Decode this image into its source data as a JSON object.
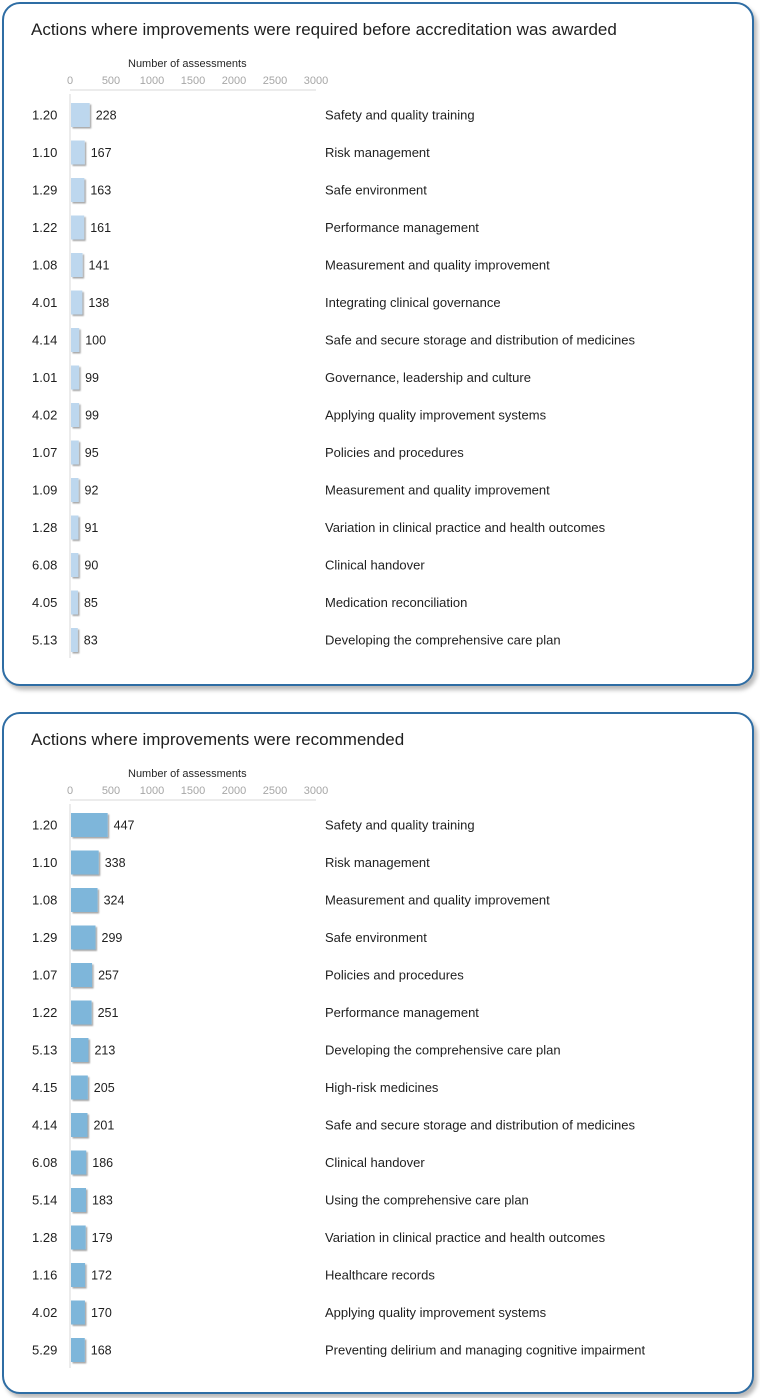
{
  "chart_data": [
    {
      "type": "bar",
      "orientation": "horizontal",
      "title": "Actions where improvements were required before accreditation was awarded",
      "xlabel": "Number  of assessments",
      "xlim": [
        0,
        3000
      ],
      "xticks": [
        "0",
        "500",
        "1000",
        "1500",
        "2000",
        "2500",
        "3000"
      ],
      "bar_color": "#bdd7ee",
      "categories": [
        "1.20",
        "1.10",
        "1.29",
        "1.22",
        "1.08",
        "4.01",
        "4.14",
        "1.01",
        "4.02",
        "1.07",
        "1.09",
        "1.28",
        "6.08",
        "4.05",
        "5.13"
      ],
      "values": [
        228,
        167,
        163,
        161,
        141,
        138,
        100,
        99,
        99,
        95,
        92,
        91,
        90,
        85,
        83
      ],
      "descriptions": [
        "Safety and quality training",
        "Risk management",
        "Safe environment",
        "Performance management",
        "Measurement and quality improvement",
        "Integrating clinical governance",
        "Safe and secure storage and distribution of medicines",
        "Governance, leadership and culture",
        "Applying quality improvement systems",
        "Policies and procedures",
        "Measurement and quality improvement",
        "Variation in clinical practice and health outcomes",
        "Clinical handover",
        "Medication reconciliation",
        "Developing the comprehensive care plan"
      ]
    },
    {
      "type": "bar",
      "orientation": "horizontal",
      "title": "Actions where improvements were recommended",
      "xlabel": "Number  of assessments",
      "xlim": [
        0,
        3000
      ],
      "xticks": [
        "0",
        "500",
        "1000",
        "1500",
        "2000",
        "2500",
        "3000"
      ],
      "bar_color": "#7eb6da",
      "categories": [
        "1.20",
        "1.10",
        "1.08",
        "1.29",
        "1.07",
        "1.22",
        "5.13",
        "4.15",
        "4.14",
        "6.08",
        "5.14",
        "1.28",
        "1.16",
        "4.02",
        "5.29"
      ],
      "values": [
        447,
        338,
        324,
        299,
        257,
        251,
        213,
        205,
        201,
        186,
        183,
        179,
        172,
        170,
        168
      ],
      "descriptions": [
        "Safety and quality training",
        "Risk management",
        "Measurement and quality improvement",
        "Safe environment",
        "Policies and procedures",
        "Performance management",
        "Developing the comprehensive care plan",
        "High-risk medicines",
        "Safe and secure storage and distribution of medicines",
        "Clinical handover",
        "Using the comprehensive care plan",
        "Variation in clinical practice and health outcomes",
        "Healthcare records",
        "Applying quality improvement systems",
        "Preventing delirium and managing cognitive impairment"
      ]
    }
  ]
}
